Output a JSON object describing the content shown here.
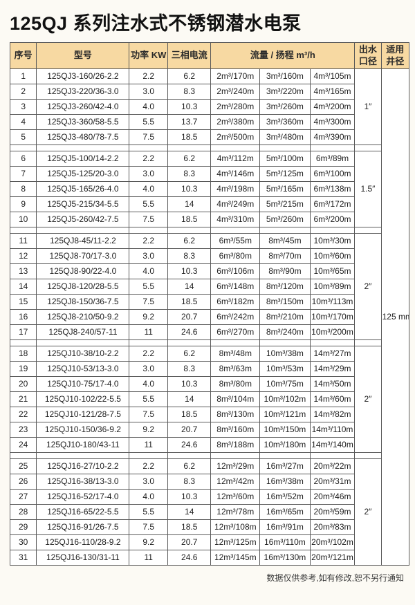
{
  "title": "125QJ 系列注水式不锈钢潜水电泵",
  "footer_note": "数据仅供参考,如有修改,恕不另行通知",
  "colors": {
    "page_bg": "#fcfaf4",
    "header_bg": "#f7d9a2",
    "border": "#595959",
    "cell_bg": "#ffffff",
    "text": "#1d1d1d"
  },
  "table": {
    "headers": {
      "serial": "序号",
      "model": "型号",
      "power": "功率 KW",
      "current": "三相电流",
      "flow_head": "流量 / 扬程 m³/h",
      "outlet": "出水\n口径",
      "well": "适用\n井径"
    },
    "well_diameter": "125\nmm",
    "groups": [
      {
        "outlet": "1″",
        "rows": [
          {
            "no": "1",
            "model": "125QJ3-160/26-2.2",
            "power": "2.2",
            "current": "6.2",
            "f1": "2m³/170m",
            "f2": "3m³/160m",
            "f3": "4m³/105m"
          },
          {
            "no": "2",
            "model": "125QJ3-220/36-3.0",
            "power": "3.0",
            "current": "8.3",
            "f1": "2m³/240m",
            "f2": "3m³/220m",
            "f3": "4m³/165m"
          },
          {
            "no": "3",
            "model": "125QJ3-260/42-4.0",
            "power": "4.0",
            "current": "10.3",
            "f1": "2m³/280m",
            "f2": "3m³/260m",
            "f3": "4m³/200m"
          },
          {
            "no": "4",
            "model": "125QJ3-360/58-5.5",
            "power": "5.5",
            "current": "13.7",
            "f1": "2m³/380m",
            "f2": "3m³/360m",
            "f3": "4m³/300m"
          },
          {
            "no": "5",
            "model": "125QJ3-480/78-7.5",
            "power": "7.5",
            "current": "18.5",
            "f1": "2m³/500m",
            "f2": "3m³/480m",
            "f3": "4m³/390m"
          }
        ]
      },
      {
        "outlet": "1.5″",
        "rows": [
          {
            "no": "6",
            "model": "125QJ5-100/14-2.2",
            "power": "2.2",
            "current": "6.2",
            "f1": "4m³/112m",
            "f2": "5m³/100m",
            "f3": "6m³/89m"
          },
          {
            "no": "7",
            "model": "125QJ5-125/20-3.0",
            "power": "3.0",
            "current": "8.3",
            "f1": "4m³/146m",
            "f2": "5m³/125m",
            "f3": "6m³/100m"
          },
          {
            "no": "8",
            "model": "125QJ5-165/26-4.0",
            "power": "4.0",
            "current": "10.3",
            "f1": "4m³/198m",
            "f2": "5m³/165m",
            "f3": "6m³/138m"
          },
          {
            "no": "9",
            "model": "125QJ5-215/34-5.5",
            "power": "5.5",
            "current": "14",
            "f1": "4m³/249m",
            "f2": "5m³/215m",
            "f3": "6m³/172m"
          },
          {
            "no": "10",
            "model": "125QJ5-260/42-7.5",
            "power": "7.5",
            "current": "18.5",
            "f1": "4m³/310m",
            "f2": "5m³/260m",
            "f3": "6m³/200m"
          }
        ]
      },
      {
        "outlet": "2″",
        "rows": [
          {
            "no": "11",
            "model": "125QJ8-45/11-2.2",
            "power": "2.2",
            "current": "6.2",
            "f1": "6m³/55m",
            "f2": "8m³/45m",
            "f3": "10m³/30m"
          },
          {
            "no": "12",
            "model": "125QJ8-70/17-3.0",
            "power": "3.0",
            "current": "8.3",
            "f1": "6m³/80m",
            "f2": "8m³/70m",
            "f3": "10m³/60m"
          },
          {
            "no": "13",
            "model": "125QJ8-90/22-4.0",
            "power": "4.0",
            "current": "10.3",
            "f1": "6m³/106m",
            "f2": "8m³/90m",
            "f3": "10m³/65m"
          },
          {
            "no": "14",
            "model": "125QJ8-120/28-5.5",
            "power": "5.5",
            "current": "14",
            "f1": "6m³/148m",
            "f2": "8m³/120m",
            "f3": "10m³/89m"
          },
          {
            "no": "15",
            "model": "125QJ8-150/36-7.5",
            "power": "7.5",
            "current": "18.5",
            "f1": "6m³/182m",
            "f2": "8m³/150m",
            "f3": "10m³/113m"
          },
          {
            "no": "16",
            "model": "125QJ8-210/50-9.2",
            "power": "9.2",
            "current": "20.7",
            "f1": "6m³/242m",
            "f2": "8m³/210m",
            "f3": "10m³/170m"
          },
          {
            "no": "17",
            "model": "125QJ8-240/57-11",
            "power": "11",
            "current": "24.6",
            "f1": "6m³/270m",
            "f2": "8m³/240m",
            "f3": "10m³/200m"
          }
        ]
      },
      {
        "outlet": "2″",
        "rows": [
          {
            "no": "18",
            "model": "125QJ10-38/10-2.2",
            "power": "2.2",
            "current": "6.2",
            "f1": "8m³/48m",
            "f2": "10m³/38m",
            "f3": "14m³/27m"
          },
          {
            "no": "19",
            "model": "125QJ10-53/13-3.0",
            "power": "3.0",
            "current": "8.3",
            "f1": "8m³/63m",
            "f2": "10m³/53m",
            "f3": "14m³/29m"
          },
          {
            "no": "20",
            "model": "125QJ10-75/17-4.0",
            "power": "4.0",
            "current": "10.3",
            "f1": "8m³/80m",
            "f2": "10m³/75m",
            "f3": "14m³/50m"
          },
          {
            "no": "21",
            "model": "125QJ10-102/22-5.5",
            "power": "5.5",
            "current": "14",
            "f1": "8m³/104m",
            "f2": "10m³/102m",
            "f3": "14m³/60m"
          },
          {
            "no": "22",
            "model": "125QJ10-121/28-7.5",
            "power": "7.5",
            "current": "18.5",
            "f1": "8m³/130m",
            "f2": "10m³/121m",
            "f3": "14m³/82m"
          },
          {
            "no": "23",
            "model": "125QJ10-150/36-9.2",
            "power": "9.2",
            "current": "20.7",
            "f1": "8m³/160m",
            "f2": "10m³/150m",
            "f3": "14m³/110m"
          },
          {
            "no": "24",
            "model": "125QJ10-180/43-11",
            "power": "11",
            "current": "24.6",
            "f1": "8m³/188m",
            "f2": "10m³/180m",
            "f3": "14m³/140m"
          }
        ]
      },
      {
        "outlet": "2″",
        "rows": [
          {
            "no": "25",
            "model": "125QJ16-27/10-2.2",
            "power": "2.2",
            "current": "6.2",
            "f1": "12m³/29m",
            "f2": "16m³/27m",
            "f3": "20m³/22m"
          },
          {
            "no": "26",
            "model": "125QJ16-38/13-3.0",
            "power": "3.0",
            "current": "8.3",
            "f1": "12m³/42m",
            "f2": "16m³/38m",
            "f3": "20m³/31m"
          },
          {
            "no": "27",
            "model": "125QJ16-52/17-4.0",
            "power": "4.0",
            "current": "10.3",
            "f1": "12m³/60m",
            "f2": "16m³/52m",
            "f3": "20m³/46m"
          },
          {
            "no": "28",
            "model": "125QJ16-65/22-5.5",
            "power": "5.5",
            "current": "14",
            "f1": "12m³/78m",
            "f2": "16m³/65m",
            "f3": "20m³/59m"
          },
          {
            "no": "29",
            "model": "125QJ16-91/26-7.5",
            "power": "7.5",
            "current": "18.5",
            "f1": "12m³/108m",
            "f2": "16m³/91m",
            "f3": "20m³/83m"
          },
          {
            "no": "30",
            "model": "125QJ16-110/28-9.2",
            "power": "9.2",
            "current": "20.7",
            "f1": "12m³/125m",
            "f2": "16m³/110m",
            "f3": "20m³/102m"
          },
          {
            "no": "31",
            "model": "125QJ16-130/31-11",
            "power": "11",
            "current": "24.6",
            "f1": "12m³/145m",
            "f2": "16m³/130m",
            "f3": "20m³/121m"
          }
        ]
      }
    ]
  }
}
